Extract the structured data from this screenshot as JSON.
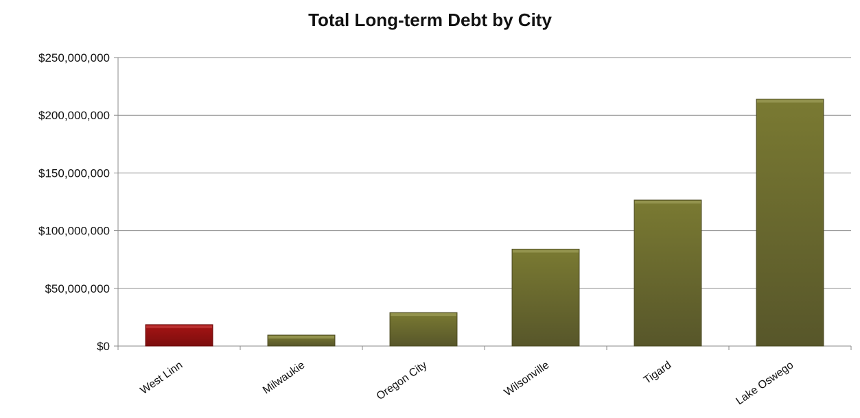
{
  "chart_data": {
    "type": "bar",
    "title": "Total Long-term Debt by City",
    "xlabel": "",
    "ylabel": "",
    "categories": [
      "West Linn",
      "Milwaukie",
      "Oregon City",
      "Wilsonville",
      "Tigard",
      "Lake Oswego"
    ],
    "values": [
      18500000,
      9500000,
      29000000,
      84000000,
      126500000,
      214000000
    ],
    "ylim": [
      0,
      250000000
    ],
    "yticks": [
      0,
      50000000,
      100000000,
      150000000,
      200000000,
      250000000
    ],
    "ytick_labels": [
      "$0",
      "$50,000,000",
      "$100,000,000",
      "$150,000,000",
      "$200,000,000",
      "$250,000,000"
    ],
    "grid": true,
    "legend": "none",
    "colors": {
      "default": "#6b6a2a",
      "highlight": "#9b1010",
      "highlight_category": "West Linn"
    }
  }
}
